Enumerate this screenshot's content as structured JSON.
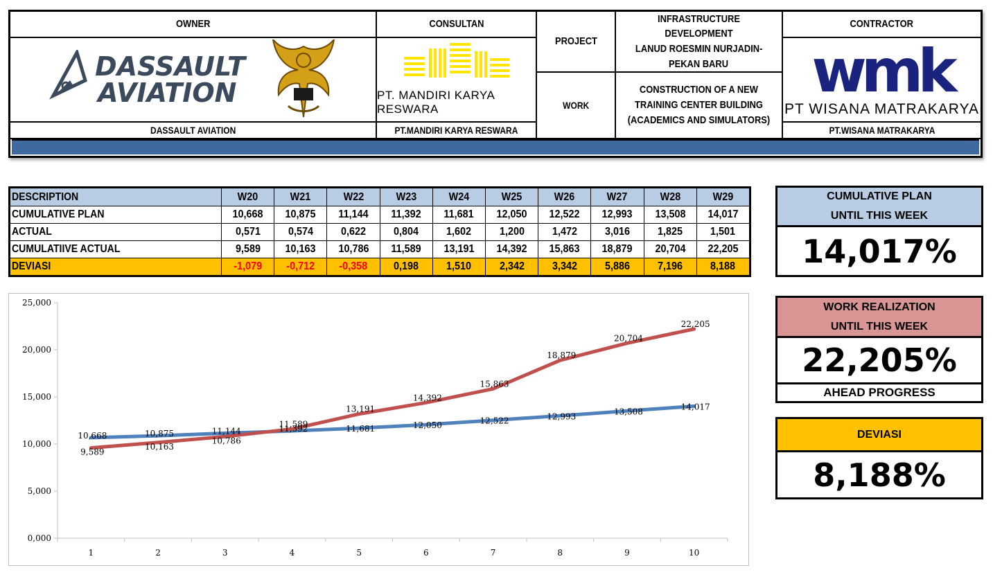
{
  "header": {
    "owner_label": "OWNER",
    "owner_logo_line1": "DASSAULT",
    "owner_logo_line2": "AVIATION",
    "owner_name": "DASSAULT AVIATION",
    "consultant_label": "CONSULTAN",
    "consultant_logo_text": "PT. MANDIRI KARYA RESWARA",
    "consultant_name": "PT.MANDIRI KARYA RESWARA",
    "project_label": "PROJECT",
    "project_value_lines": [
      "INFRASTRUCTURE DEVELOPMENT",
      "LANUD ROESMIN NURJADIN-",
      "PEKAN BARU"
    ],
    "work_label": "WORK",
    "work_value_lines": [
      "CONSTRUCTION OF A NEW",
      "TRAINING CENTER BUILDING",
      "(ACADEMICS AND SIMULATORS)"
    ],
    "contractor_label": "CONTRACTOR",
    "contractor_logo_text": "wmk",
    "contractor_logo_sub": "PT WISANA MATRAKARYA",
    "contractor_name": "PT.WISANA MATRAKARYA",
    "colors": {
      "bluebar": "#3f6aa0",
      "dassault": "#3a4a5c",
      "wmk": "#1a237e",
      "consultant_logo": "#ffe500",
      "emblem": "#d4a017"
    }
  },
  "table": {
    "description_label": "DESCRIPTION",
    "weeks": [
      "W20",
      "W21",
      "W22",
      "W23",
      "W24",
      "W25",
      "W26",
      "W27",
      "W28",
      "W29"
    ],
    "rows": [
      {
        "label": "CUMULATIVE PLAN",
        "values": [
          "10,668",
          "10,875",
          "11,144",
          "11,392",
          "11,681",
          "12,050",
          "12,522",
          "12,993",
          "13,508",
          "14,017"
        ]
      },
      {
        "label": "ACTUAL",
        "values": [
          "0,571",
          "0,574",
          "0,622",
          "0,804",
          "1,602",
          "1,200",
          "1,472",
          "3,016",
          "1,825",
          "1,501"
        ]
      },
      {
        "label": "CUMULATIIVE ACTUAL",
        "values": [
          "9,589",
          "10,163",
          "10,786",
          "11,589",
          "13,191",
          "14,392",
          "15,863",
          "18,879",
          "20,704",
          "22,205"
        ]
      },
      {
        "label": "DEVIASI",
        "values": [
          "-1,079",
          "-0,712",
          "-0,358",
          "0,198",
          "1,510",
          "2,342",
          "3,342",
          "5,886",
          "7,196",
          "8,188"
        ]
      }
    ],
    "colors": {
      "header_bg": "#b8cce4",
      "deviasi_bg": "#ffc000",
      "negative": "#ff0000"
    }
  },
  "panels": {
    "plan": {
      "title_line1": "CUMULATIVE PLAN",
      "title_line2": "UNTIL THIS WEEK",
      "value": "14,017%",
      "color": "#b8cce4"
    },
    "realization": {
      "title_line1": "WORK REALIZATION",
      "title_line2": "UNTIL THIS WEEK",
      "value": "22,205%",
      "footer": "AHEAD PROGRESS",
      "color": "#d99594"
    },
    "deviasi": {
      "title": "DEVIASI",
      "value": "8,188%",
      "color": "#ffc000"
    }
  },
  "chart_data": {
    "type": "line",
    "title": "",
    "xlabel": "",
    "ylabel": "",
    "x": [
      1,
      2,
      3,
      4,
      5,
      6,
      7,
      8,
      9,
      10
    ],
    "ylim": [
      0,
      25
    ],
    "yticks": [
      0,
      5,
      10,
      15,
      20,
      25
    ],
    "ytick_labels": [
      "0,000",
      "5,000",
      "10,000",
      "15,000",
      "20,000",
      "25,000"
    ],
    "grid": false,
    "legend": "none",
    "series": [
      {
        "color": "#4f81bd",
        "values": [
          10.668,
          10.875,
          11.144,
          11.392,
          11.681,
          12.05,
          12.522,
          12.993,
          13.508,
          14.017
        ],
        "labels": [
          "10,668",
          "10,875",
          "11,144",
          "11,392",
          "11,681",
          "12,050",
          "12,522",
          "12,993",
          "13,508",
          "14,017"
        ]
      },
      {
        "color": "#c0504d",
        "values": [
          9.589,
          10.163,
          10.786,
          11.589,
          13.191,
          14.392,
          15.863,
          18.879,
          20.704,
          22.205
        ],
        "labels": [
          "9,589",
          "10,163",
          "10,786",
          "11,589",
          "13,191",
          "14,392",
          "15,863",
          "18,879",
          "20,704",
          "22,205"
        ]
      }
    ]
  }
}
